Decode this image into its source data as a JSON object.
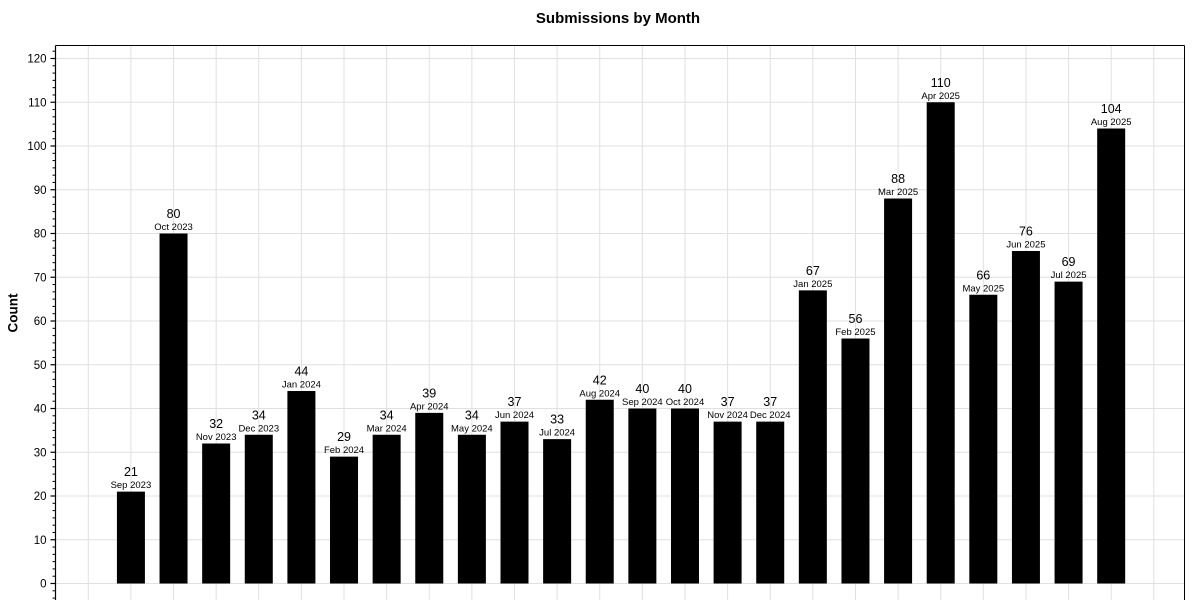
{
  "chart_data": {
    "type": "bar",
    "title": "Submissions by Month",
    "xlabel": "",
    "ylabel": "Count",
    "categories": [
      "Sep 2023",
      "Oct 2023",
      "Nov 2023",
      "Dec 2023",
      "Jan 2024",
      "Feb 2024",
      "Mar 2024",
      "Apr 2024",
      "May 2024",
      "Jun 2024",
      "Jul 2024",
      "Aug 2024",
      "Sep 2024",
      "Oct 2024",
      "Nov 2024",
      "Dec 2024",
      "Jan 2025",
      "Feb 2025",
      "Mar 2025",
      "Apr 2025",
      "May 2025",
      "Jun 2025",
      "Jul 2025",
      "Aug 2025"
    ],
    "values": [
      21,
      80,
      32,
      34,
      44,
      29,
      34,
      39,
      34,
      37,
      33,
      42,
      40,
      40,
      37,
      37,
      67,
      56,
      88,
      110,
      66,
      76,
      69,
      104
    ],
    "y_ticks": [
      0,
      10,
      20,
      30,
      40,
      50,
      60,
      70,
      80,
      90,
      100,
      110,
      120
    ],
    "ylim": [
      0,
      120
    ],
    "grid": true,
    "legend": "none",
    "colors": {
      "bar": "#000000",
      "gridline": "#e0e0e0",
      "axis": "#000000",
      "label_text": "#000000",
      "background": "#ffffff"
    }
  }
}
